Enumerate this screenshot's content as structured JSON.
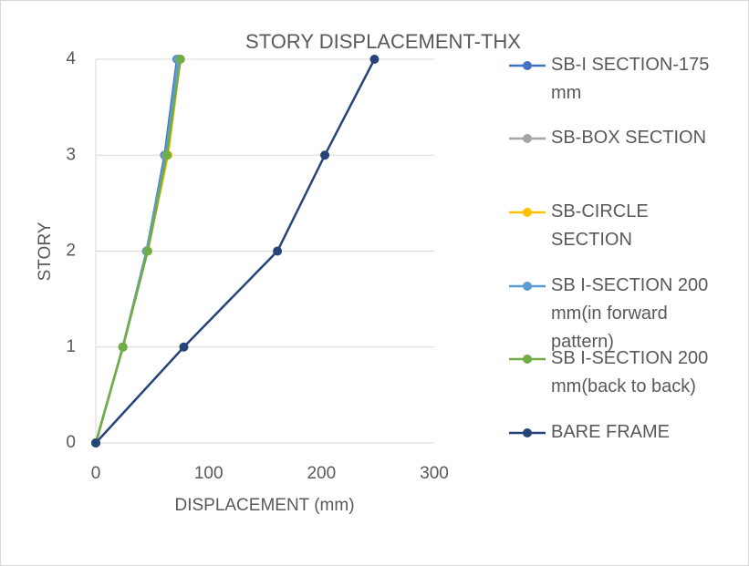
{
  "chart_data": {
    "type": "line",
    "title": "STORY DISPLACEMENT-THX",
    "x_label": "DISPLACEMENT (mm)",
    "y_label": "STORY",
    "xlim": [
      0,
      300
    ],
    "xticks": [
      0,
      100,
      200,
      300
    ],
    "ylim": [
      0,
      4
    ],
    "yticks": [
      0,
      1,
      2,
      3,
      4
    ],
    "grid": true,
    "legend": "right",
    "series": [
      {
        "name": "SB-I SECTION-175 mm",
        "color": "#4472c4",
        "x": [
          0,
          24,
          45,
          61,
          72
        ],
        "values": [
          0,
          1,
          2,
          3,
          4
        ]
      },
      {
        "name": "SB-BOX SECTION",
        "color": "#a5a5a5",
        "x": [
          0,
          24,
          45,
          62,
          73
        ],
        "values": [
          0,
          1,
          2,
          3,
          4
        ]
      },
      {
        "name": "SB-CIRCLE SECTION",
        "color": "#ffc000",
        "x": [
          0,
          24,
          46,
          64,
          75
        ],
        "values": [
          0,
          1,
          2,
          3,
          4
        ]
      },
      {
        "name": "SB I-SECTION 200 mm(in forward pattern)",
        "color": "#5b9bd5",
        "x": [
          0,
          24,
          45,
          62,
          73
        ],
        "values": [
          0,
          1,
          2,
          3,
          4
        ]
      },
      {
        "name": "SB I-SECTION 200 mm(back to back)",
        "color": "#70ad47",
        "x": [
          0,
          24,
          46,
          63,
          75
        ],
        "values": [
          0,
          1,
          2,
          3,
          4
        ]
      },
      {
        "name": "BARE FRAME",
        "color": "#264478",
        "x": [
          0,
          78,
          161,
          203,
          247
        ],
        "values": [
          0,
          1,
          2,
          3,
          4
        ]
      }
    ]
  }
}
